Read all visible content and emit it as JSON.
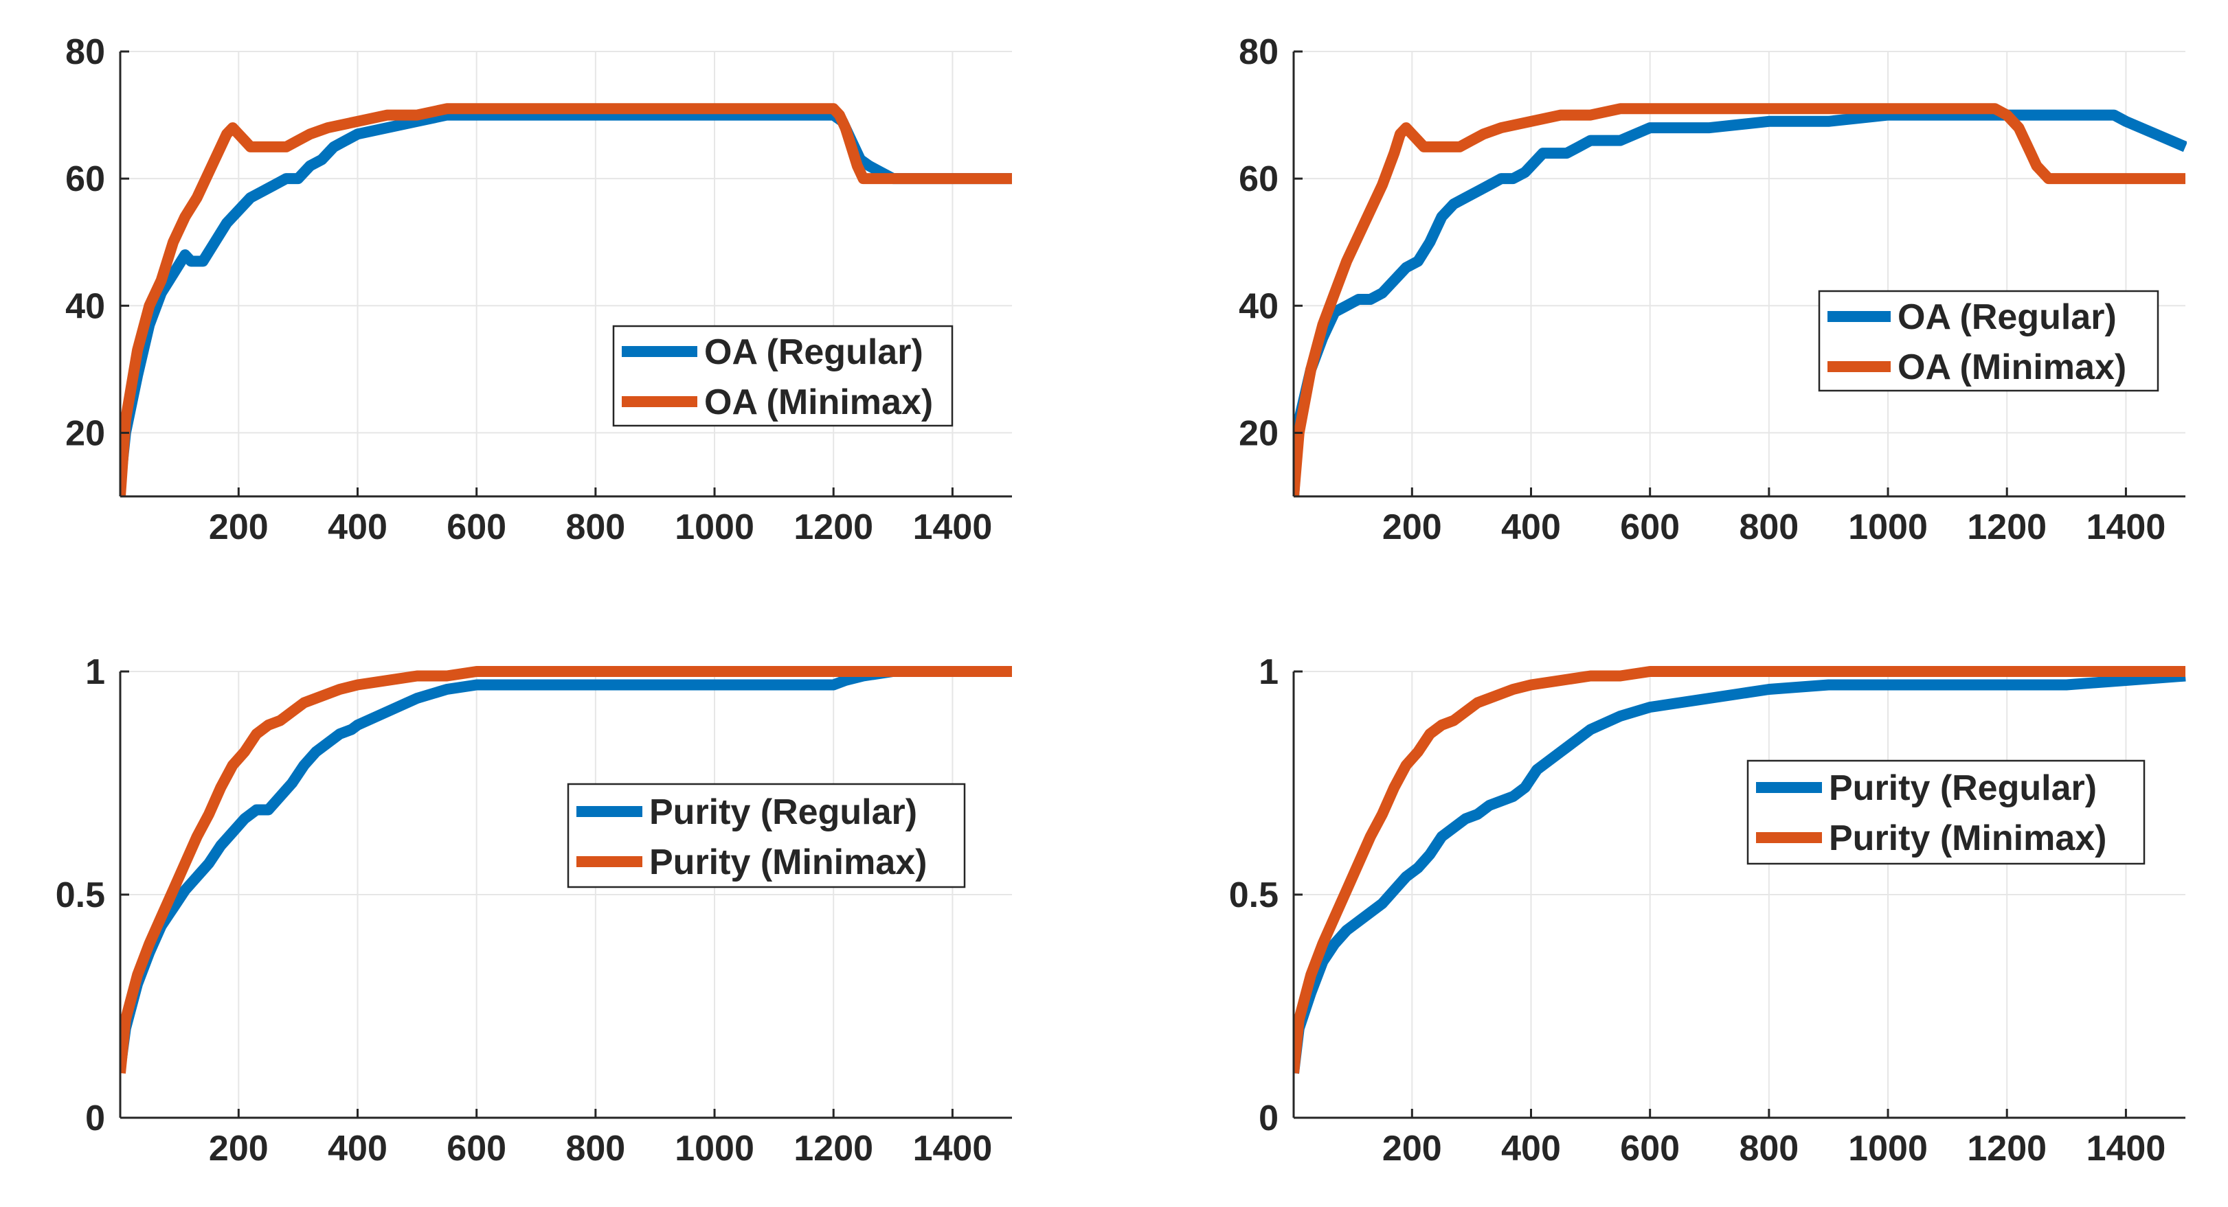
{
  "colors": {
    "regular": "#0072BD",
    "minimax": "#D95319",
    "axis": "#262626",
    "grid": "#e6e6e6"
  },
  "chart_data": [
    {
      "type": "line",
      "id": "oa-left",
      "xlim": [
        1,
        1500
      ],
      "ylim": [
        10,
        80
      ],
      "xticks": [
        200,
        400,
        600,
        800,
        1000,
        1200,
        1400
      ],
      "yticks": [
        20,
        40,
        60,
        80
      ],
      "xtick_labels": [
        "200",
        "400",
        "600",
        "800",
        "1000",
        "1200",
        "1400"
      ],
      "ytick_labels": [
        "20",
        "40",
        "60",
        "80"
      ],
      "legend_position": "center-right",
      "series": [
        {
          "name": "OA (Regular)",
          "color": "#0072BD",
          "x": [
            1,
            10,
            30,
            50,
            70,
            90,
            110,
            120,
            140,
            160,
            180,
            200,
            220,
            240,
            260,
            280,
            300,
            320,
            340,
            360,
            380,
            400,
            450,
            500,
            550,
            600,
            700,
            800,
            900,
            1000,
            1100,
            1200,
            1215,
            1230,
            1245,
            1260,
            1280,
            1300,
            1400,
            1500
          ],
          "y": [
            12,
            20,
            29,
            37,
            42,
            45,
            48,
            47,
            47,
            50,
            53,
            55,
            57,
            58,
            59,
            60,
            60,
            62,
            63,
            65,
            66,
            67,
            68,
            69,
            70,
            70,
            70,
            70,
            70,
            70,
            70,
            70,
            69,
            66,
            63,
            62,
            61,
            60,
            60,
            60
          ]
        },
        {
          "name": "OA (Minimax)",
          "color": "#D95319",
          "x": [
            1,
            10,
            30,
            50,
            70,
            90,
            110,
            130,
            150,
            170,
            180,
            190,
            200,
            210,
            220,
            240,
            260,
            280,
            300,
            320,
            350,
            400,
            450,
            500,
            550,
            600,
            700,
            800,
            900,
            1000,
            1100,
            1150,
            1200,
            1210,
            1220,
            1230,
            1240,
            1250,
            1300,
            1400,
            1500
          ],
          "y": [
            10,
            22,
            33,
            40,
            44,
            50,
            54,
            57,
            61,
            65,
            67,
            68,
            67,
            66,
            65,
            65,
            65,
            65,
            66,
            67,
            68,
            69,
            70,
            70,
            71,
            71,
            71,
            71,
            71,
            71,
            71,
            71,
            71,
            70,
            68,
            65,
            62,
            60,
            60,
            60,
            60
          ]
        }
      ]
    },
    {
      "type": "line",
      "id": "oa-right",
      "xlim": [
        1,
        1500
      ],
      "ylim": [
        10,
        80
      ],
      "xticks": [
        200,
        400,
        600,
        800,
        1000,
        1200,
        1400
      ],
      "yticks": [
        20,
        40,
        60,
        80
      ],
      "xtick_labels": [
        "200",
        "400",
        "600",
        "800",
        "1000",
        "1200",
        "1400"
      ],
      "ytick_labels": [
        "20",
        "40",
        "60",
        "80"
      ],
      "legend_position": "center-right",
      "series": [
        {
          "name": "OA (Regular)",
          "color": "#0072BD",
          "x": [
            1,
            10,
            30,
            50,
            70,
            90,
            110,
            130,
            150,
            170,
            190,
            210,
            230,
            250,
            270,
            290,
            310,
            330,
            350,
            370,
            390,
            400,
            420,
            440,
            460,
            480,
            500,
            550,
            600,
            700,
            800,
            900,
            1000,
            1100,
            1200,
            1300,
            1350,
            1380,
            1400,
            1450,
            1500
          ],
          "y": [
            10,
            22,
            30,
            35,
            39,
            40,
            41,
            41,
            42,
            44,
            46,
            47,
            50,
            54,
            56,
            57,
            58,
            59,
            60,
            60,
            61,
            62,
            64,
            64,
            64,
            65,
            66,
            66,
            68,
            68,
            69,
            69,
            70,
            70,
            70,
            70,
            70,
            70,
            69,
            67,
            65
          ]
        },
        {
          "name": "OA (Minimax)",
          "color": "#D95319",
          "x": [
            1,
            10,
            30,
            50,
            70,
            90,
            110,
            130,
            150,
            170,
            180,
            190,
            200,
            210,
            220,
            240,
            260,
            280,
            300,
            320,
            350,
            400,
            450,
            500,
            550,
            600,
            700,
            800,
            900,
            1000,
            1100,
            1150,
            1180,
            1200,
            1220,
            1240,
            1250,
            1260,
            1270,
            1300,
            1400,
            1500
          ],
          "y": [
            10,
            20,
            30,
            37,
            42,
            47,
            51,
            55,
            59,
            64,
            67,
            68,
            67,
            66,
            65,
            65,
            65,
            65,
            66,
            67,
            68,
            69,
            70,
            70,
            71,
            71,
            71,
            71,
            71,
            71,
            71,
            71,
            71,
            70,
            68,
            64,
            62,
            61,
            60,
            60,
            60,
            60
          ]
        }
      ]
    },
    {
      "type": "line",
      "id": "purity-left",
      "xlim": [
        1,
        1500
      ],
      "ylim": [
        0,
        1
      ],
      "xticks": [
        200,
        400,
        600,
        800,
        1000,
        1200,
        1400
      ],
      "yticks": [
        0,
        0.5,
        1
      ],
      "xtick_labels": [
        "200",
        "400",
        "600",
        "800",
        "1000",
        "1200",
        "1400"
      ],
      "ytick_labels": [
        "0",
        "0.5",
        "1"
      ],
      "legend_position": "center-right",
      "series": [
        {
          "name": "Purity (Regular)",
          "color": "#0072BD",
          "x": [
            1,
            10,
            30,
            50,
            70,
            90,
            110,
            130,
            150,
            170,
            190,
            210,
            230,
            250,
            270,
            290,
            310,
            330,
            350,
            370,
            390,
            400,
            450,
            500,
            550,
            600,
            700,
            800,
            900,
            1000,
            1100,
            1200,
            1220,
            1250,
            1300,
            1400,
            1500
          ],
          "y": [
            0.11,
            0.2,
            0.3,
            0.37,
            0.43,
            0.47,
            0.51,
            0.54,
            0.57,
            0.61,
            0.64,
            0.67,
            0.69,
            0.69,
            0.72,
            0.75,
            0.79,
            0.82,
            0.84,
            0.86,
            0.87,
            0.88,
            0.91,
            0.94,
            0.96,
            0.97,
            0.97,
            0.97,
            0.97,
            0.97,
            0.97,
            0.97,
            0.98,
            0.99,
            1.0,
            1.0,
            1.0
          ]
        },
        {
          "name": "Purity (Minimax)",
          "color": "#D95319",
          "x": [
            1,
            10,
            30,
            50,
            70,
            90,
            110,
            130,
            150,
            170,
            190,
            210,
            230,
            250,
            270,
            290,
            310,
            330,
            350,
            370,
            400,
            450,
            500,
            550,
            600,
            700,
            800,
            900,
            1000,
            1100,
            1200,
            1300,
            1400,
            1500
          ],
          "y": [
            0.1,
            0.22,
            0.32,
            0.39,
            0.45,
            0.51,
            0.57,
            0.63,
            0.68,
            0.74,
            0.79,
            0.82,
            0.86,
            0.88,
            0.89,
            0.91,
            0.93,
            0.94,
            0.95,
            0.96,
            0.97,
            0.98,
            0.99,
            0.99,
            1.0,
            1.0,
            1.0,
            1.0,
            1.0,
            1.0,
            1.0,
            1.0,
            1.0,
            1.0
          ]
        }
      ]
    },
    {
      "type": "line",
      "id": "purity-right",
      "xlim": [
        1,
        1500
      ],
      "ylim": [
        0,
        1
      ],
      "xticks": [
        200,
        400,
        600,
        800,
        1000,
        1200,
        1400
      ],
      "yticks": [
        0,
        0.5,
        1
      ],
      "xtick_labels": [
        "200",
        "400",
        "600",
        "800",
        "1000",
        "1200",
        "1400"
      ],
      "ytick_labels": [
        "0",
        "0.5",
        "1"
      ],
      "legend_position": "center-right",
      "series": [
        {
          "name": "Purity (Regular)",
          "color": "#0072BD",
          "x": [
            1,
            10,
            30,
            50,
            70,
            90,
            110,
            130,
            150,
            170,
            190,
            210,
            230,
            250,
            270,
            290,
            310,
            330,
            350,
            370,
            390,
            410,
            430,
            450,
            470,
            500,
            550,
            600,
            650,
            700,
            750,
            800,
            900,
            1000,
            1100,
            1200,
            1300,
            1400,
            1500
          ],
          "y": [
            0.1,
            0.2,
            0.28,
            0.35,
            0.39,
            0.42,
            0.44,
            0.46,
            0.48,
            0.51,
            0.54,
            0.56,
            0.59,
            0.63,
            0.65,
            0.67,
            0.68,
            0.7,
            0.71,
            0.72,
            0.74,
            0.78,
            0.8,
            0.82,
            0.84,
            0.87,
            0.9,
            0.92,
            0.93,
            0.94,
            0.95,
            0.96,
            0.97,
            0.97,
            0.97,
            0.97,
            0.97,
            0.98,
            0.99
          ]
        },
        {
          "name": "Purity (Minimax)",
          "color": "#D95319",
          "x": [
            1,
            10,
            30,
            50,
            70,
            90,
            110,
            130,
            150,
            170,
            190,
            210,
            230,
            250,
            270,
            290,
            310,
            330,
            350,
            370,
            400,
            450,
            500,
            550,
            600,
            700,
            800,
            900,
            1000,
            1100,
            1200,
            1300,
            1400,
            1500
          ],
          "y": [
            0.1,
            0.22,
            0.32,
            0.39,
            0.45,
            0.51,
            0.57,
            0.63,
            0.68,
            0.74,
            0.79,
            0.82,
            0.86,
            0.88,
            0.89,
            0.91,
            0.93,
            0.94,
            0.95,
            0.96,
            0.97,
            0.98,
            0.99,
            0.99,
            1.0,
            1.0,
            1.0,
            1.0,
            1.0,
            1.0,
            1.0,
            1.0,
            1.0,
            1.0
          ]
        }
      ]
    }
  ]
}
